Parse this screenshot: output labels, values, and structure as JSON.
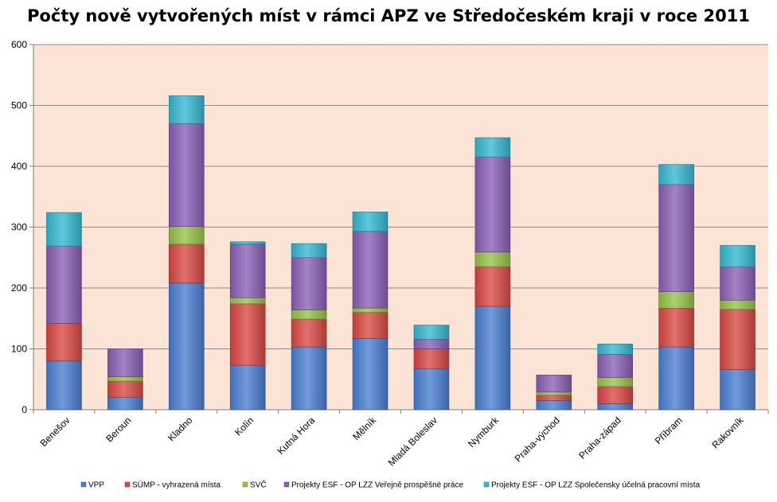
{
  "chart_data": {
    "type": "bar",
    "stacked": true,
    "title": "Počty nově vytvořených míst v rámci APZ ve Středočeském kraji v roce 2011",
    "xlabel": "",
    "ylabel": "",
    "ylim": [
      0,
      600
    ],
    "yticks": [
      "0",
      "100",
      "200",
      "300",
      "400",
      "500",
      "600"
    ],
    "grid": true,
    "legend_position": "bottom",
    "categories": [
      "Benešov",
      "Beroun",
      "Kladno",
      "Kolín",
      "Kutná Hora",
      "Mělník",
      "Mladá Boleslav",
      "Nymburk",
      "Praha-východ",
      "Praha-západ",
      "Příbram",
      "Rakovník"
    ],
    "series": [
      {
        "name": "VPP",
        "color": "#4a7ed1",
        "values": [
          80,
          20,
          208,
          73,
          103,
          117,
          67,
          170,
          15,
          10,
          103,
          66
        ]
      },
      {
        "name": "SÚMP - vyhrazená místa",
        "color": "#d94843",
        "values": [
          62,
          27,
          64,
          101,
          46,
          43,
          33,
          65,
          9,
          28,
          64,
          99
        ]
      },
      {
        "name": "SVČ",
        "color": "#97c247",
        "values": [
          0,
          7,
          29,
          10,
          15,
          7,
          0,
          24,
          5,
          15,
          27,
          15
        ]
      },
      {
        "name": "Projekty ESF - OP LZZ Veřejně prospěšné práce",
        "color": "#8a5fb5",
        "values": [
          127,
          46,
          169,
          88,
          86,
          126,
          16,
          156,
          28,
          38,
          176,
          55
        ]
      },
      {
        "name": "Projekty ESF - OP LZZ Společensky účelná pracovní místa",
        "color": "#35b8d1",
        "values": [
          55,
          0,
          46,
          4,
          23,
          32,
          23,
          32,
          0,
          17,
          33,
          35
        ]
      }
    ]
  },
  "colors": {
    "plot_background": "#fbe4d5",
    "gridline": "#8c8c8c"
  }
}
